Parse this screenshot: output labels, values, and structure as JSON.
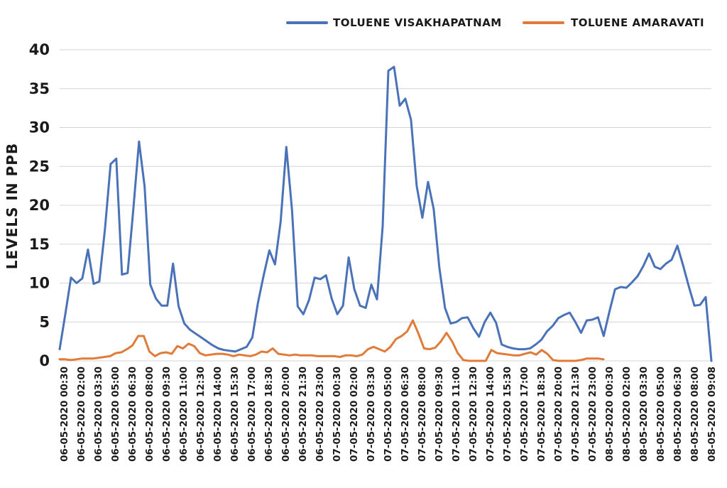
{
  "chart_data": {
    "type": "line",
    "ylabel": "LEVELS IN PPB",
    "xlabel": "",
    "ylim": [
      0,
      40
    ],
    "yticks": [
      "0",
      "5",
      "10",
      "15",
      "20",
      "25",
      "30",
      "35",
      "40"
    ],
    "grid": true,
    "legend_position": "top-right",
    "x_tick_labels": [
      "06-05-2020 00:30",
      "06-05-2020 02:00",
      "06-05-2020 03:30",
      "06-05-2020 05:00",
      "06-05-2020 06:30",
      "06-05-2020 08:00",
      "06-05-2020 09:30",
      "06-05-2020 11:00",
      "06-05-2020 12:30",
      "06-05-2020 14:00",
      "06-05-2020 15:30",
      "06-05-2020 17:00",
      "06-05-2020 18:30",
      "06-05-2020 20:00",
      "06-05-2020 21:30",
      "06-05-2020 23:00",
      "07-05-2020 00:30",
      "07-05-2020 02:00",
      "07-05-2020 03:30",
      "07-05-2020 05:00",
      "07-05-2020 06:30",
      "07-05-2020 08:00",
      "07-05-2020 09:30",
      "07-05-2020 11:00",
      "07-05-2020 12:30",
      "07-05-2020 14:00",
      "07-05-2020 15:30",
      "07-05-2020 17:00",
      "07-05-2020 18:30",
      "07-05-2020 20:00",
      "07-05-2020 21:30",
      "07-05-2020 23:00",
      "08-05-2020 00:30",
      "08-05-2020 02:00",
      "08-05-2020 03:30",
      "08-05-2020 05:00",
      "08-05-2020 06:30",
      "08-05-2020 08:00",
      "08-05-2020 09:08"
    ],
    "series": [
      {
        "name": "TOLUENE VISAKHAPATNAM",
        "color": "#4a72b8",
        "values": [
          1.5,
          6.0,
          10.7,
          10.0,
          10.6,
          14.3,
          9.9,
          10.2,
          17.0,
          25.3,
          26.0,
          11.1,
          11.3,
          19.5,
          28.2,
          22.4,
          9.8,
          8.0,
          7.1,
          7.1,
          12.5,
          7.0,
          4.8,
          4.0,
          3.5,
          3.0,
          2.5,
          2.0,
          1.6,
          1.4,
          1.3,
          1.2,
          1.5,
          1.8,
          3.0,
          7.5,
          11.0,
          14.2,
          12.4,
          17.9,
          27.5,
          19.4,
          7.0,
          6.0,
          7.8,
          10.7,
          10.5,
          11.0,
          8.0,
          6.0,
          7.1,
          13.3,
          9.2,
          7.1,
          6.8,
          9.8,
          7.9,
          17.3,
          37.3,
          37.8,
          32.8,
          33.7,
          31.0,
          22.5,
          18.4,
          23.0,
          19.5,
          12.0,
          6.8,
          4.8,
          5.0,
          5.5,
          5.6,
          4.2,
          3.1,
          5.0,
          6.2,
          4.9,
          2.1,
          1.8,
          1.6,
          1.5,
          1.5,
          1.6,
          2.1,
          2.7,
          3.8,
          4.5,
          5.5,
          5.9,
          6.2,
          5.0,
          3.6,
          5.2,
          5.3,
          5.6,
          3.2,
          6.3,
          9.2,
          9.5,
          9.4,
          10.1,
          10.9,
          12.2,
          13.8,
          12.1,
          11.8,
          12.5,
          13.0,
          14.8,
          12.3,
          9.6,
          7.1,
          7.2,
          8.2,
          0.0
        ]
      },
      {
        "name": "TOLUENE AMARAVATI",
        "color": "#e07b39",
        "values": [
          0.2,
          0.2,
          0.1,
          0.2,
          0.3,
          0.3,
          0.3,
          0.4,
          0.5,
          0.6,
          1.0,
          1.1,
          1.5,
          2.0,
          3.2,
          3.2,
          1.2,
          0.6,
          1.0,
          1.1,
          0.9,
          1.9,
          1.6,
          2.2,
          1.9,
          1.0,
          0.7,
          0.8,
          0.9,
          0.9,
          0.8,
          0.6,
          0.8,
          0.7,
          0.6,
          0.8,
          1.2,
          1.1,
          1.6,
          0.9,
          0.8,
          0.7,
          0.8,
          0.7,
          0.7,
          0.7,
          0.6,
          0.6,
          0.6,
          0.6,
          0.5,
          0.7,
          0.7,
          0.6,
          0.8,
          1.5,
          1.8,
          1.5,
          1.2,
          1.8,
          2.8,
          3.2,
          3.8,
          5.2,
          3.5,
          1.6,
          1.5,
          1.7,
          2.5,
          3.6,
          2.5,
          1.0,
          0.1,
          0.0,
          0.0,
          0.0,
          0.0,
          1.4,
          1.0,
          0.9,
          0.8,
          0.7,
          0.7,
          0.9,
          1.1,
          0.8,
          1.4,
          0.9,
          0.1,
          0.0,
          0.0,
          0.0,
          0.0,
          0.1,
          0.3,
          0.3,
          0.3,
          0.2
        ]
      }
    ]
  }
}
